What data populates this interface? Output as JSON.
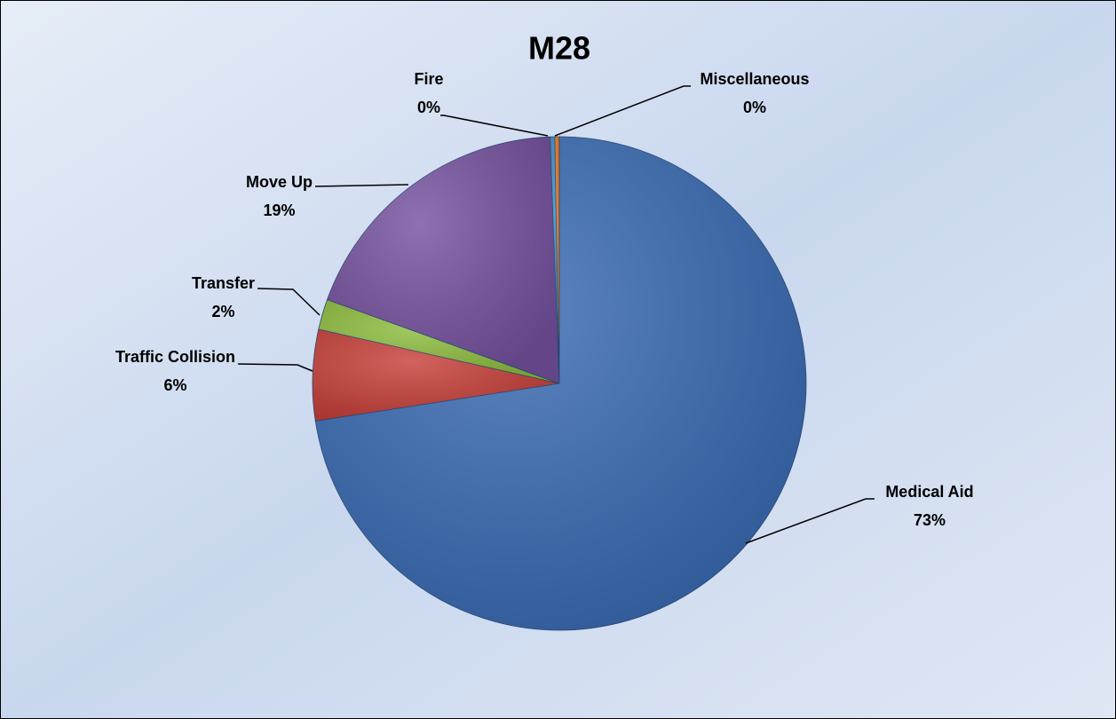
{
  "chart_data": {
    "type": "pie",
    "title": "M28",
    "categories": [
      "Medical Aid",
      "Traffic Collision",
      "Transfer",
      "Move Up",
      "Fire",
      "Miscellaneous"
    ],
    "values": [
      73,
      6,
      2,
      19,
      0.3,
      0.3
    ],
    "value_labels": [
      "73%",
      "6%",
      "2%",
      "19%",
      "0%",
      "0%"
    ],
    "colors": [
      "#3a6cb4",
      "#c8403a",
      "#8dbd3e",
      "#7652a0",
      "#3b8ec4",
      "#e8761c"
    ]
  }
}
